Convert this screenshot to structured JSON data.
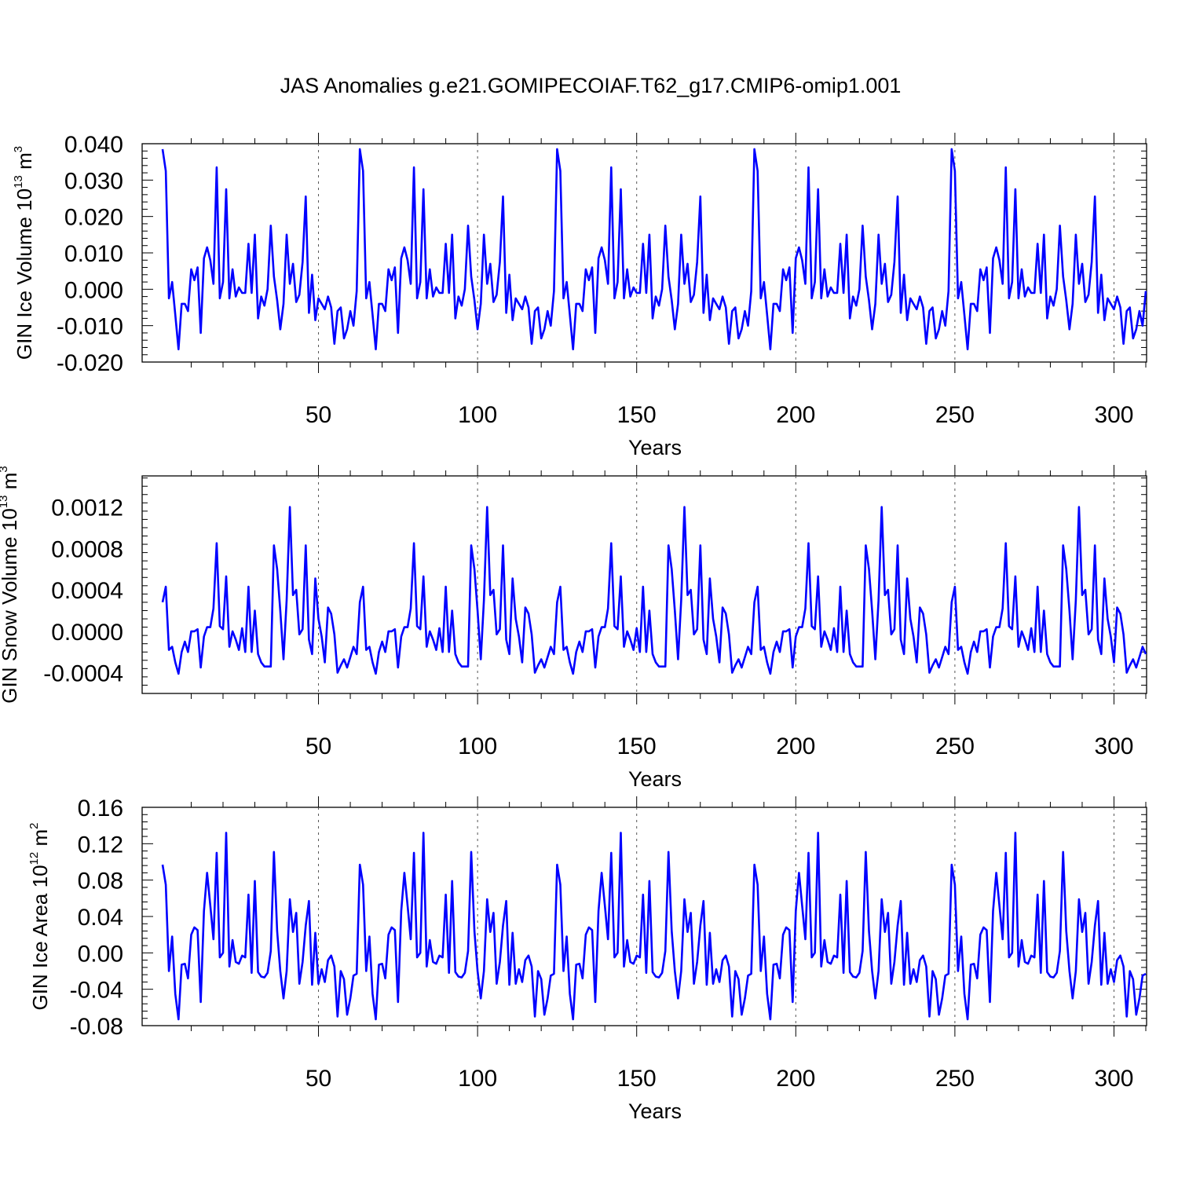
{
  "title": "JAS Anomalies g.e21.GOMIPECOIAF.T62_g17.CMIP6-omip1.001",
  "line_color": "#0000ff",
  "chart_data": [
    {
      "type": "line",
      "name": "ice-volume",
      "ylabel": {
        "main": "GIN Ice Volume 10",
        "exp": "13",
        "unit": " m",
        "unit_exp": "3"
      },
      "xlabel": "Years",
      "xlim": [
        1,
        310
      ],
      "ylim": [
        -0.02,
        0.04
      ],
      "yticks": [
        -0.02,
        -0.01,
        0.0,
        0.01,
        0.02,
        0.03,
        0.04
      ],
      "ytick_labels": [
        "-0.020",
        "-0.010",
        "0.000",
        "0.010",
        "0.020",
        "0.030",
        "0.040"
      ],
      "xticks": [
        50,
        100,
        150,
        200,
        250,
        300
      ],
      "xtick_labels": [
        "50",
        "100",
        "150",
        "200",
        "250",
        "300"
      ],
      "cycle_values": [
        0.0385,
        0.0325,
        -0.0025,
        0.002,
        -0.007,
        -0.0165,
        -0.004,
        -0.004,
        -0.006,
        0.0055,
        0.0025,
        0.006,
        -0.012,
        0.0085,
        0.0115,
        0.008,
        0.0015,
        0.0335,
        -0.0025,
        0.002,
        0.0275,
        -0.0025,
        0.0055,
        -0.002,
        0.0005,
        -0.001,
        -0.001,
        0.0125,
        -0.001,
        0.015,
        -0.008,
        -0.002,
        -0.0045,
        0.0,
        0.0175,
        0.0035,
        -0.003,
        -0.011,
        -0.004,
        0.015,
        0.0015,
        0.007,
        -0.0035,
        -0.0015,
        0.0075,
        0.0255,
        -0.0065,
        0.004,
        -0.0085,
        -0.0025,
        -0.004,
        -0.0055,
        -0.002,
        -0.005,
        -0.015,
        -0.006,
        -0.005,
        -0.0135,
        -0.011,
        -0.006,
        -0.01,
        -0.0005
      ],
      "cycles": 5
    },
    {
      "type": "line",
      "name": "snow-volume",
      "ylabel": {
        "main": "GIN Snow Volume 10",
        "exp": "13",
        "unit": " m",
        "unit_exp": "3"
      },
      "xlabel": "Years",
      "xlim": [
        1,
        310
      ],
      "ylim": [
        -0.0006,
        0.0015
      ],
      "yticks": [
        -0.0004,
        0.0,
        0.0004,
        0.0008,
        0.0012
      ],
      "ytick_labels": [
        "-0.0004",
        "0.0000",
        "0.0004",
        "0.0008",
        "0.0012"
      ],
      "xticks": [
        50,
        100,
        150,
        200,
        250,
        300
      ],
      "xtick_labels": [
        "50",
        "100",
        "150",
        "200",
        "250",
        "300"
      ],
      "cycle_values": [
        0.00028,
        0.00043,
        -0.00018,
        -0.00015,
        -0.0003,
        -0.00041,
        -0.0002,
        -0.0001,
        -0.0002,
        0.0,
        0.0,
        2e-05,
        -0.00035,
        -5e-05,
        4e-05,
        4e-05,
        0.00022,
        0.00085,
        5e-05,
        2e-05,
        0.00053,
        -0.00015,
        0.0,
        -8e-05,
        -0.00018,
        3e-05,
        -0.0002,
        0.00043,
        -0.0002,
        0.0002,
        -0.00022,
        -0.0003,
        -0.00034,
        -0.00034,
        -0.00034,
        0.00083,
        0.0006,
        0.0002,
        -0.00027,
        0.0003,
        0.0012,
        0.00035,
        0.0004,
        -3e-05,
        2e-05,
        0.00083,
        -8e-05,
        -0.00022,
        0.00051,
        0.00012,
        -5e-05,
        -0.0003,
        0.00023,
        0.00017,
        -3e-05,
        -0.0004,
        -0.00033,
        -0.00027,
        -0.00035,
        -0.00025,
        -0.00015,
        -0.00022
      ],
      "cycles": 5
    },
    {
      "type": "line",
      "name": "ice-area",
      "ylabel": {
        "main": "GIN Ice Area 10",
        "exp": "12",
        "unit": " m",
        "unit_exp": "2"
      },
      "xlabel": "Years",
      "xlim": [
        1,
        310
      ],
      "ylim": [
        -0.08,
        0.16
      ],
      "yticks": [
        -0.08,
        -0.04,
        0.0,
        0.04,
        0.08,
        0.12,
        0.16
      ],
      "ytick_labels": [
        "-0.08",
        "-0.04",
        "0.00",
        "0.04",
        "0.08",
        "0.12",
        "0.16"
      ],
      "xticks": [
        50,
        100,
        150,
        200,
        250,
        300
      ],
      "xtick_labels": [
        "50",
        "100",
        "150",
        "200",
        "250",
        "300"
      ],
      "cycle_values": [
        0.097,
        0.075,
        -0.02,
        0.018,
        -0.045,
        -0.073,
        -0.013,
        -0.012,
        -0.028,
        0.02,
        0.028,
        0.025,
        -0.054,
        0.046,
        0.088,
        0.052,
        0.015,
        0.11,
        -0.005,
        0.0,
        0.132,
        -0.015,
        0.014,
        -0.01,
        -0.012,
        -0.003,
        -0.005,
        0.064,
        -0.022,
        0.079,
        -0.021,
        -0.026,
        -0.027,
        -0.022,
        0.002,
        0.111,
        0.024,
        -0.02,
        -0.05,
        -0.02,
        0.059,
        0.023,
        0.044,
        -0.034,
        -0.01,
        0.03,
        0.057,
        -0.035,
        0.022,
        -0.034,
        -0.018,
        -0.032,
        -0.008,
        -0.003,
        -0.015,
        -0.07,
        -0.02,
        -0.029,
        -0.068,
        -0.05,
        -0.025,
        -0.023
      ],
      "cycles": 5
    }
  ]
}
